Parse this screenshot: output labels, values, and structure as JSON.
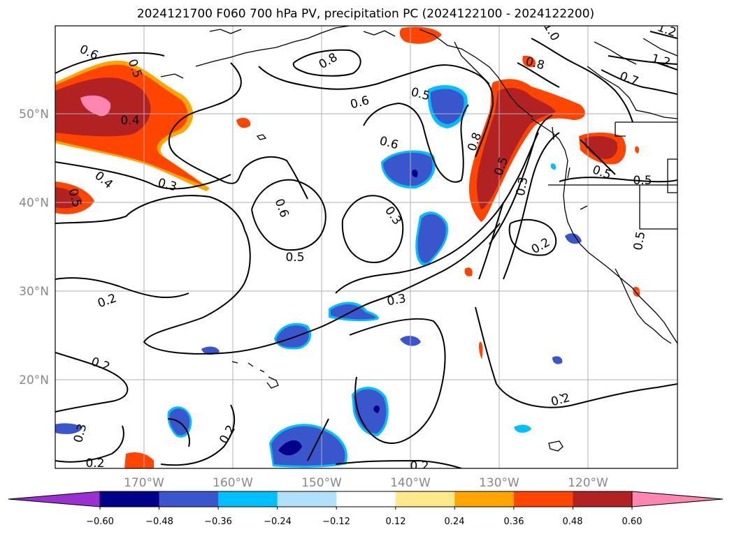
{
  "title": "2024121700 F060 700 hPa PV, precipitation PC (2024122100 - 2024122200)",
  "colors": {
    "grid": "#b0b0b0",
    "contour": "#000000",
    "coast": "#000000",
    "tick_text": "#888888"
  },
  "map": {
    "lon_range": [
      -180,
      -110
    ],
    "lat_range": [
      10,
      60
    ],
    "lat_ticks": [
      "50°N",
      "40°N",
      "30°N",
      "20°N"
    ],
    "lon_ticks": [
      "170°W",
      "160°W",
      "150°W",
      "140°W",
      "130°W",
      "120°W"
    ]
  },
  "contour_labels": [
    "0.6",
    "0.5",
    "0.4",
    "0.4",
    "0.5",
    "0.3",
    "0.8",
    "0.6",
    "0.5",
    "0.6",
    "1.0",
    "1.2",
    "1.2",
    "0.8",
    "0.7",
    "0.8",
    "0.5",
    "0.5",
    "0.5",
    "0.3",
    "0.6",
    "0.3",
    "0.5",
    "0.2",
    "0.2",
    "0.3",
    "0.2",
    "0.2",
    "0.2",
    "0.2",
    "0.3",
    "0.2",
    "0.5"
  ],
  "colorbar": {
    "ticks": [
      "−0.60",
      "−0.48",
      "−0.36",
      "−0.24",
      "−0.12",
      "0.12",
      "0.24",
      "0.36",
      "0.48",
      "0.60"
    ],
    "bins": [
      {
        "range": "< -0.60",
        "color": "#9b30d0"
      },
      {
        "range": "-0.60 to -0.48",
        "color": "#00008b"
      },
      {
        "range": "-0.48 to -0.36",
        "color": "#3a56cc"
      },
      {
        "range": "-0.36 to -0.24",
        "color": "#00bfff"
      },
      {
        "range": "-0.24 to -0.12",
        "color": "#b0e0fa"
      },
      {
        "range": "-0.12 to 0.12",
        "color": "#ffffff"
      },
      {
        "range": "0.12 to 0.24",
        "color": "#ffe98a"
      },
      {
        "range": "0.24 to 0.36",
        "color": "#ffa500"
      },
      {
        "range": "0.36 to 0.48",
        "color": "#ff4500"
      },
      {
        "range": "0.48 to 0.60",
        "color": "#b22222"
      },
      {
        "range": "> 0.60",
        "color": "#ff86b0"
      }
    ]
  }
}
